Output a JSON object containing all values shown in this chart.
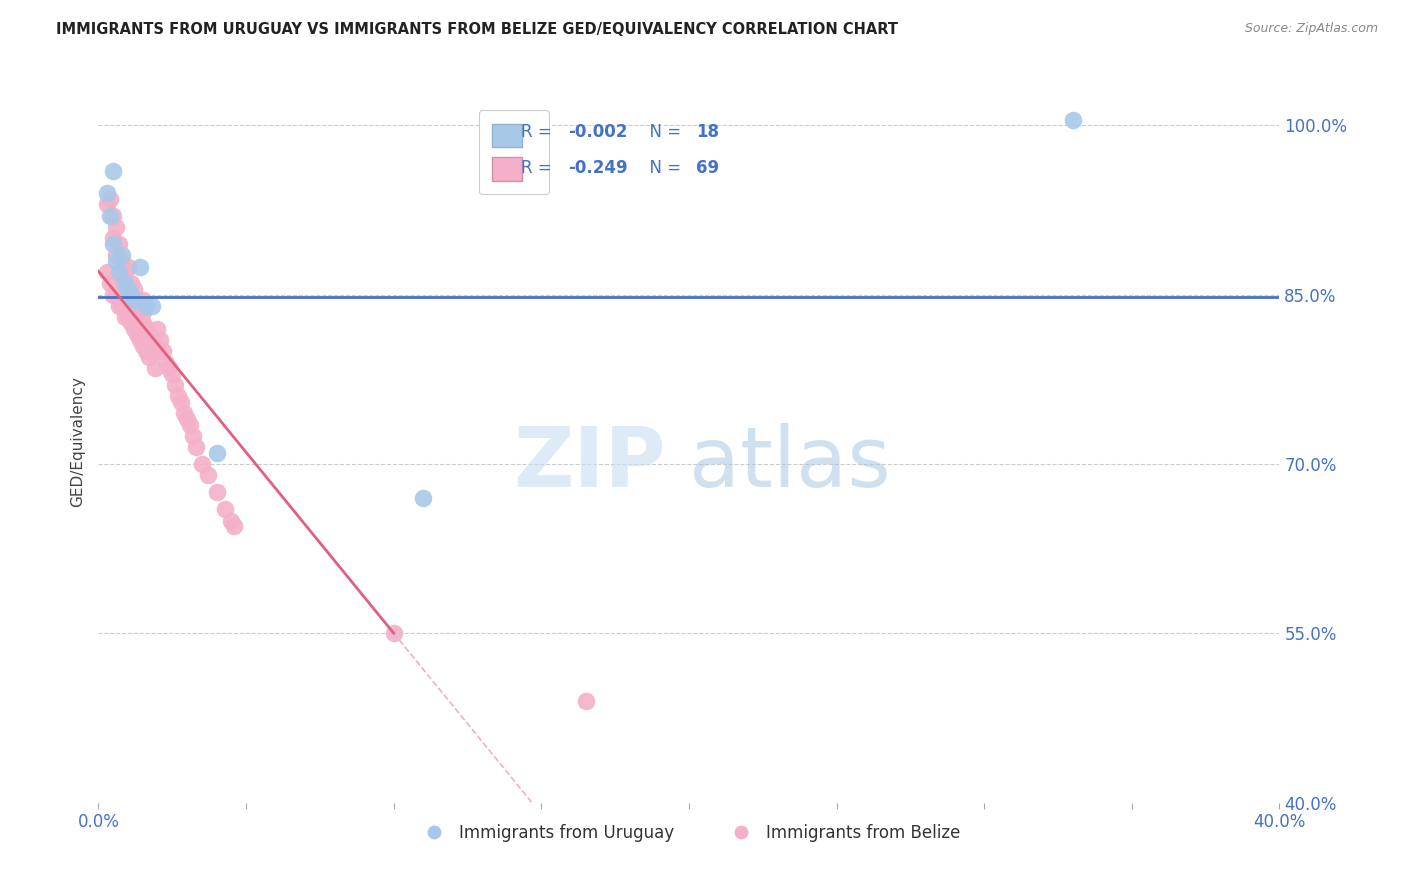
{
  "title": "IMMIGRANTS FROM URUGUAY VS IMMIGRANTS FROM BELIZE GED/EQUIVALENCY CORRELATION CHART",
  "source": "Source: ZipAtlas.com",
  "ylabel": "GED/Equivalency",
  "legend_label1": "Immigrants from Uruguay",
  "legend_label2": "Immigrants from Belize",
  "xlim": [
    0.0,
    0.4
  ],
  "ylim": [
    0.4,
    1.04
  ],
  "yticks": [
    0.4,
    0.55,
    0.7,
    0.85,
    1.0
  ],
  "ytick_labels": [
    "40.0%",
    "55.0%",
    "70.0%",
    "85.0%",
    "100.0%"
  ],
  "xticks": [
    0.0,
    0.05,
    0.1,
    0.15,
    0.2,
    0.25,
    0.3,
    0.35,
    0.4
  ],
  "color_uruguay": "#a8c8e8",
  "color_belize": "#f4b0c8",
  "color_trend_uruguay": "#4472c4",
  "color_trend_belize": "#e06080",
  "color_trend_dashed": "#f0b0c0",
  "uruguay_x": [
    0.003,
    0.004,
    0.005,
    0.005,
    0.006,
    0.007,
    0.008,
    0.009,
    0.01,
    0.011,
    0.012,
    0.014,
    0.016,
    0.018,
    0.04,
    0.11,
    0.33
  ],
  "uruguay_y": [
    0.94,
    0.92,
    0.96,
    0.895,
    0.88,
    0.87,
    0.885,
    0.86,
    0.855,
    0.85,
    0.845,
    0.875,
    0.84,
    0.84,
    0.71,
    0.67,
    1.005
  ],
  "belize_x": [
    0.003,
    0.004,
    0.005,
    0.005,
    0.006,
    0.006,
    0.007,
    0.007,
    0.008,
    0.008,
    0.009,
    0.009,
    0.01,
    0.01,
    0.01,
    0.011,
    0.011,
    0.012,
    0.012,
    0.013,
    0.013,
    0.014,
    0.014,
    0.015,
    0.015,
    0.015,
    0.016,
    0.017,
    0.018,
    0.019,
    0.02,
    0.02,
    0.021,
    0.022,
    0.023,
    0.024,
    0.025,
    0.026,
    0.027,
    0.028,
    0.029,
    0.03,
    0.031,
    0.032,
    0.033,
    0.035,
    0.037,
    0.04,
    0.043,
    0.046,
    0.005,
    0.007,
    0.009,
    0.011,
    0.013,
    0.015,
    0.017,
    0.019,
    0.003,
    0.004,
    0.006,
    0.008,
    0.01,
    0.012,
    0.014,
    0.016,
    0.045,
    0.1,
    0.165
  ],
  "belize_y": [
    0.93,
    0.935,
    0.92,
    0.9,
    0.91,
    0.885,
    0.895,
    0.87,
    0.88,
    0.865,
    0.87,
    0.86,
    0.855,
    0.85,
    0.875,
    0.845,
    0.86,
    0.84,
    0.855,
    0.835,
    0.845,
    0.83,
    0.84,
    0.825,
    0.835,
    0.845,
    0.82,
    0.815,
    0.81,
    0.805,
    0.8,
    0.82,
    0.81,
    0.8,
    0.79,
    0.785,
    0.78,
    0.77,
    0.76,
    0.755,
    0.745,
    0.74,
    0.735,
    0.725,
    0.715,
    0.7,
    0.69,
    0.675,
    0.66,
    0.645,
    0.85,
    0.84,
    0.83,
    0.825,
    0.815,
    0.805,
    0.795,
    0.785,
    0.87,
    0.86,
    0.85,
    0.84,
    0.83,
    0.82,
    0.81,
    0.8,
    0.65,
    0.55,
    0.49
  ],
  "hline_y": 0.848,
  "watermark_zip": "ZIP",
  "watermark_atlas": "atlas",
  "background_color": "#ffffff",
  "grid_color": "#cccccc",
  "blue_text": "#4472c4",
  "title_color": "#222222",
  "source_color": "#888888"
}
